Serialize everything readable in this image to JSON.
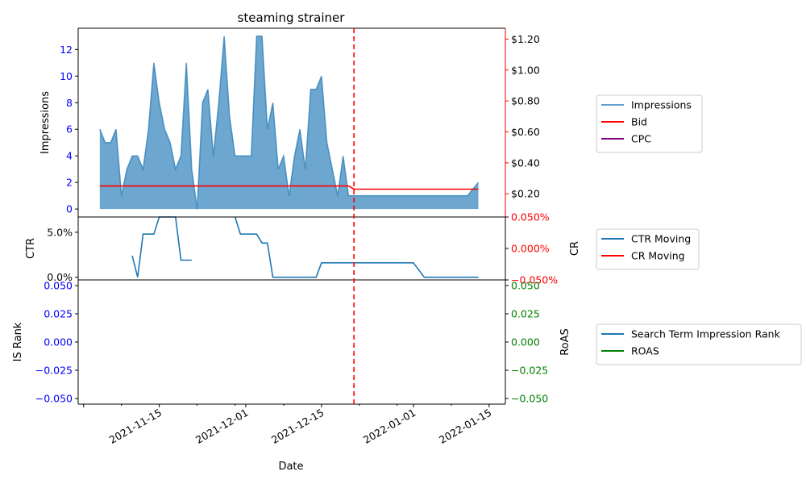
{
  "chart_data": {
    "type": "line",
    "title": "steaming strainer",
    "xlabel": "Date",
    "x_ticks": [
      "2021-11-15",
      "2021-12-01",
      "2021-12-15",
      "2022-01-01",
      "2022-01-15"
    ],
    "marker_date": "2021-12-21",
    "marker_color": "#ff0000",
    "panels": [
      {
        "id": "top",
        "ylabel_left": "Impressions",
        "ylabel_right": "",
        "left_ticks": [
          "0",
          "2",
          "4",
          "6",
          "8",
          "10",
          "12"
        ],
        "right_ticks": [
          "$0.20",
          "$0.40",
          "$0.60",
          "$0.80",
          "$1.00",
          "$1.20"
        ],
        "left_tick_color": "#0000ff",
        "right_tick_color": "#000000",
        "right_spine_color": "#ff0000",
        "ylim_left": [
          -0.6,
          13.6
        ],
        "ylim_right": [
          0.05,
          1.27
        ],
        "legend": [
          "Impressions",
          "Bid",
          "CPC"
        ],
        "series": [
          {
            "name": "Impressions",
            "kind": "area",
            "color": "#1f77b4",
            "points": [
              [
                "2021-11-04",
                6
              ],
              [
                "2021-11-05",
                5
              ],
              [
                "2021-11-06",
                5
              ],
              [
                "2021-11-07",
                6
              ],
              [
                "2021-11-08",
                1
              ],
              [
                "2021-11-09",
                3
              ],
              [
                "2021-11-10",
                4
              ],
              [
                "2021-11-11",
                4
              ],
              [
                "2021-11-12",
                3
              ],
              [
                "2021-11-13",
                6
              ],
              [
                "2021-11-14",
                11
              ],
              [
                "2021-11-15",
                8
              ],
              [
                "2021-11-16",
                6
              ],
              [
                "2021-11-17",
                5
              ],
              [
                "2021-11-18",
                3
              ],
              [
                "2021-11-19",
                4
              ],
              [
                "2021-11-20",
                11
              ],
              [
                "2021-11-21",
                3
              ],
              [
                "2021-11-22",
                0
              ],
              [
                "2021-11-23",
                8
              ],
              [
                "2021-11-24",
                9
              ],
              [
                "2021-11-25",
                4
              ],
              [
                "2021-11-26",
                8
              ],
              [
                "2021-11-27",
                13
              ],
              [
                "2021-11-28",
                7
              ],
              [
                "2021-11-29",
                4
              ],
              [
                "2021-11-30",
                4
              ],
              [
                "2021-12-01",
                4
              ],
              [
                "2021-12-02",
                4
              ],
              [
                "2021-12-03",
                13
              ],
              [
                "2021-12-04",
                13
              ],
              [
                "2021-12-05",
                6
              ],
              [
                "2021-12-06",
                8
              ],
              [
                "2021-12-07",
                3
              ],
              [
                "2021-12-08",
                4
              ],
              [
                "2021-12-09",
                1
              ],
              [
                "2021-12-10",
                4
              ],
              [
                "2021-12-11",
                6
              ],
              [
                "2021-12-12",
                3
              ],
              [
                "2021-12-13",
                9
              ],
              [
                "2021-12-14",
                9
              ],
              [
                "2021-12-15",
                10
              ],
              [
                "2021-12-16",
                5
              ],
              [
                "2021-12-17",
                3
              ],
              [
                "2021-12-18",
                1
              ],
              [
                "2021-12-19",
                4
              ],
              [
                "2021-12-20",
                1
              ],
              [
                "2021-12-21",
                1
              ],
              [
                "2022-01-10",
                1
              ],
              [
                "2022-01-11",
                1
              ],
              [
                "2022-01-12",
                1.5
              ],
              [
                "2022-01-13",
                2
              ]
            ]
          },
          {
            "name": "Bid",
            "kind": "line",
            "axis": "right",
            "color": "#ff0000",
            "points": [
              [
                "2021-11-04",
                0.25
              ],
              [
                "2021-12-20",
                0.25
              ],
              [
                "2021-12-21",
                0.23
              ],
              [
                "2022-01-13",
                0.23
              ]
            ]
          },
          {
            "name": "CPC",
            "kind": "line",
            "axis": "right",
            "color": "#800080",
            "points": []
          }
        ]
      },
      {
        "id": "mid",
        "ylabel_left": "CTR",
        "ylabel_right": "CR",
        "left_ticks": [
          "0.0%",
          "5.0%"
        ],
        "right_ticks": [
          "−0.050%",
          "0.000%",
          "0.050%"
        ],
        "left_tick_color": "#000000",
        "right_tick_color": "#ff0000",
        "right_spine_color": "#000000",
        "ylim_left": [
          -0.003,
          0.067
        ],
        "ylim_right": [
          -0.05,
          0.05
        ],
        "legend": [
          "CTR Moving",
          "CR Moving"
        ],
        "series": [
          {
            "name": "CTR Moving",
            "kind": "line",
            "color": "#1f77b4",
            "segments": [
              [
                [
                  "2021-11-10",
                  0.024
                ],
                [
                  "2021-11-11",
                  0
                ],
                [
                  "2021-11-12",
                  0.048
                ],
                [
                  "2021-11-14",
                  0.048
                ],
                [
                  "2021-11-15",
                  0.067
                ],
                [
                  "2021-11-18",
                  0.067
                ],
                [
                  "2021-11-19",
                  0.019
                ],
                [
                  "2021-11-21",
                  0.019
                ]
              ],
              [
                [
                  "2021-11-29",
                  0.067
                ],
                [
                  "2021-11-30",
                  0.048
                ],
                [
                  "2021-12-03",
                  0.048
                ],
                [
                  "2021-12-04",
                  0.038
                ],
                [
                  "2021-12-05",
                  0.038
                ],
                [
                  "2021-12-06",
                  0
                ],
                [
                  "2021-12-14",
                  0
                ],
                [
                  "2021-12-15",
                  0.016
                ],
                [
                  "2022-01-01",
                  0.016
                ],
                [
                  "2022-01-03",
                  0
                ],
                [
                  "2022-01-13",
                  0
                ]
              ]
            ]
          },
          {
            "name": "CR Moving",
            "kind": "line",
            "axis": "right",
            "color": "#ff0000",
            "segments": []
          }
        ]
      },
      {
        "id": "bottom",
        "ylabel_left": "IS Rank",
        "ylabel_right": "RoAS",
        "left_ticks": [
          "−0.050",
          "−0.025",
          "0.000",
          "0.025",
          "0.050"
        ],
        "right_ticks": [
          "−0.050",
          "−0.025",
          "0.000",
          "0.025",
          "0.050"
        ],
        "left_tick_color": "#0000ff",
        "right_tick_color": "#008000",
        "right_spine_color": "#000000",
        "ylim_left": [
          -0.055,
          0.055
        ],
        "ylim_right": [
          -0.055,
          0.055
        ],
        "legend": [
          "Search Term Impression Rank",
          "ROAS"
        ],
        "series": [
          {
            "name": "Search Term Impression Rank",
            "kind": "line",
            "color": "#1f77b4",
            "points": []
          },
          {
            "name": "ROAS",
            "kind": "line",
            "axis": "right",
            "color": "#008000",
            "points": []
          }
        ]
      }
    ]
  }
}
